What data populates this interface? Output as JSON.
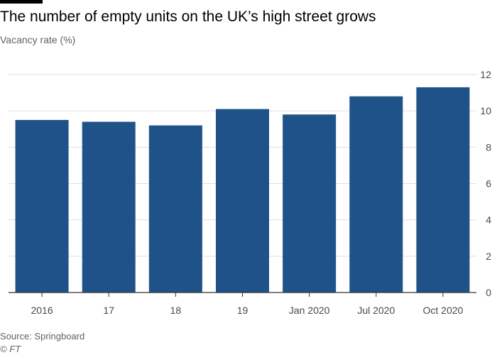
{
  "title": "The number of empty units on the UK’s high street grows",
  "subtitle": "Vacancy rate (%)",
  "source": "Source: Springboard",
  "credit": "© FT",
  "colors": {
    "bar": "#1f5289",
    "grid": "#e2ddd9",
    "axis": "#33302e",
    "tick_text": "#4d4845"
  },
  "chart_data": {
    "type": "bar",
    "categories": [
      "2016",
      "17",
      "18",
      "19",
      "Jan 2020",
      "Jul 2020",
      "Oct 2020"
    ],
    "values": [
      9.5,
      9.4,
      9.2,
      10.1,
      9.8,
      10.8,
      11.3
    ],
    "ylim": [
      0,
      12
    ],
    "yticks": [
      "0",
      "2",
      "4",
      "6",
      "8",
      "10",
      "12"
    ],
    "ylabel": "Vacancy rate (%)",
    "grid": true,
    "y_axis_side": "right"
  }
}
